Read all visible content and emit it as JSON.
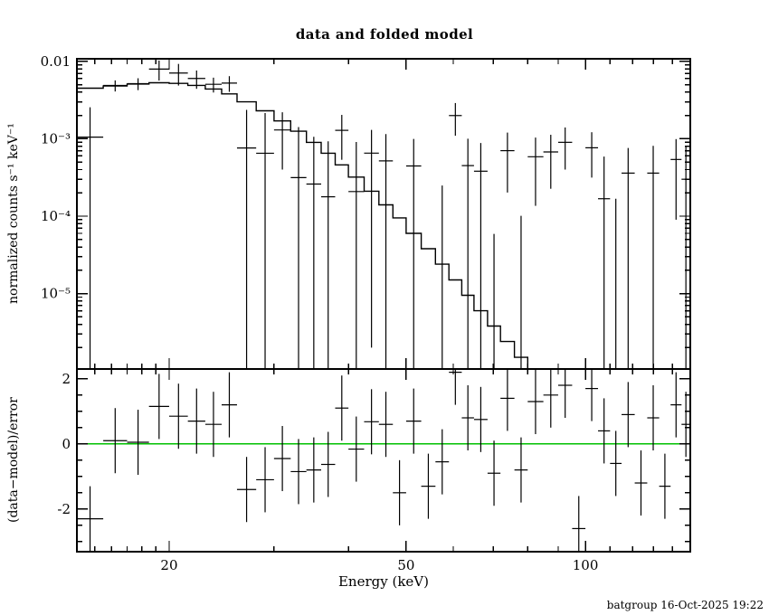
{
  "header": {
    "title": "data and folded model"
  },
  "footer": {
    "timestamp": "batgroup 16-Oct-2025 19:22"
  },
  "chart_data": {
    "type": "scatter",
    "subtype": "xspec-data-and-folded-model-with-residuals",
    "title": "data and folded model",
    "xlabel": "Energy (keV)",
    "x_scale": "log",
    "x_range": [
      14,
      150
    ],
    "x_major_ticks": [
      {
        "v": 20,
        "label": "20"
      },
      {
        "v": 50,
        "label": "50"
      },
      {
        "v": 100,
        "label": "100"
      }
    ],
    "x_minor_ticks": [
      15,
      16,
      17,
      18,
      19,
      30,
      40,
      60,
      70,
      80,
      90,
      110,
      120,
      130,
      140,
      150
    ],
    "colors": {
      "axes": "#000000",
      "data": "#000000",
      "model": "#000000",
      "zero_line": "#00c000",
      "background": "#ffffff"
    },
    "panels": {
      "top": {
        "ylabel": "normalized counts s⁻¹ keV⁻¹",
        "y_scale": "log",
        "y_range": [
          1.06e-06,
          0.0108
        ],
        "y_major_ticks": [
          {
            "v": 0.01,
            "label": "0.01"
          },
          {
            "v": 0.001,
            "label": "10⁻³"
          },
          {
            "v": 0.0001,
            "label": "10⁻⁴"
          },
          {
            "v": 1e-05,
            "label": "10⁻⁵"
          }
        ]
      },
      "bottom": {
        "ylabel": "(data−model)/error",
        "y_scale": "linear",
        "y_range": [
          -3.31,
          2.3
        ],
        "y_major_ticks": [
          {
            "v": 2,
            "label": "2"
          },
          {
            "v": 0,
            "label": "0"
          },
          {
            "v": -2,
            "label": "-2"
          }
        ],
        "y_minor_ticks": [
          -3,
          -2.5,
          -1.5,
          -1,
          -0.5,
          0.5,
          1,
          1.5
        ],
        "resid_err": 1
      }
    },
    "bin_columns": [
      "e_lo",
      "e_hi",
      "model",
      "data",
      "err",
      "resid"
    ],
    "bins": [
      [
        14,
        15.5,
        0.0045,
        0.00105,
        0.0015,
        -2.3
      ],
      [
        15.5,
        17,
        0.0048,
        0.00488,
        0.0008,
        0.1
      ],
      [
        17,
        18.5,
        0.0051,
        0.00515,
        0.0009,
        0.05
      ],
      [
        18.5,
        20,
        0.0053,
        0.00795,
        0.0023,
        1.15
      ],
      [
        20,
        21.5,
        0.0052,
        0.00707,
        0.0022,
        0.85
      ],
      [
        21.5,
        23,
        0.0049,
        0.00602,
        0.0016,
        0.7
      ],
      [
        23,
        24.5,
        0.0044,
        0.00506,
        0.0011,
        0.6
      ],
      [
        24.5,
        26,
        0.0038,
        0.00524,
        0.0012,
        1.2
      ],
      [
        26,
        28,
        0.003,
        0.00076,
        0.0016,
        -1.4
      ],
      [
        28,
        30,
        0.0023,
        0.00065,
        0.0015,
        -1.1
      ],
      [
        30,
        32,
        0.0017,
        0.0013,
        0.0009,
        -0.45
      ],
      [
        32,
        34,
        0.00125,
        0.000315,
        0.0011,
        -0.85
      ],
      [
        34,
        36,
        0.0009,
        0.00026,
        0.0008,
        -0.8
      ],
      [
        36,
        38,
        0.00065,
        0.000178,
        0.00075,
        -0.63
      ],
      [
        38,
        40,
        0.00046,
        0.001285,
        0.00075,
        1.1
      ],
      [
        40,
        42.5,
        0.00032,
        0.000208,
        0.0007,
        -0.16
      ],
      [
        42.5,
        45,
        0.00021,
        0.000652,
        0.00065,
        0.68
      ],
      [
        45,
        47.5,
        0.00014,
        0.000518,
        0.00063,
        0.6
      ],
      [
        47.5,
        50,
        9.5e-05,
        -0.000805,
        0.0006,
        -1.5
      ],
      [
        50,
        53,
        6e-05,
        0.000445,
        0.00055,
        0.7
      ],
      [
        53,
        56,
        3.8e-05,
        -0.000677,
        0.00055,
        -1.3
      ],
      [
        56,
        59,
        2.4e-05,
        -0.000251,
        0.0005,
        -0.55
      ],
      [
        59,
        62,
        1.5e-05,
        0.001995,
        0.0009,
        2.2
      ],
      [
        62,
        65,
        9.5e-06,
        0.00045,
        0.00055,
        0.8
      ],
      [
        65,
        68.5,
        6e-06,
        0.000381,
        0.0005,
        0.75
      ],
      [
        68.5,
        72,
        3.8e-06,
        -0.000491,
        0.00055,
        -0.9
      ],
      [
        72,
        76,
        2.4e-06,
        0.000702,
        0.0005,
        1.4
      ],
      [
        76,
        80,
        1.5e-06,
        -0.000399,
        0.0005,
        -0.8
      ],
      [
        80,
        85,
        1e-06,
        0.000586,
        0.00045,
        1.3
      ],
      [
        85,
        90,
        7e-07,
        0.000676,
        0.00045,
        1.5
      ],
      [
        90,
        95,
        5e-07,
        0.0009,
        0.0005,
        1.8
      ],
      [
        95,
        100,
        4e-07,
        -0.00117,
        0.00045,
        -2.6
      ],
      [
        100,
        105,
        3e-07,
        0.000765,
        0.00045,
        1.7
      ],
      [
        105,
        110,
        2.5e-07,
        0.000168,
        0.00042,
        0.4
      ],
      [
        110,
        115,
        2.2e-07,
        -0.000252,
        0.00042,
        -0.6
      ],
      [
        115,
        121,
        1.8e-07,
        0.00036,
        0.0004,
        0.9
      ],
      [
        121,
        127,
        1.5e-07,
        -0.000504,
        0.00042,
        -1.2
      ],
      [
        127,
        133,
        1.2e-07,
        0.00036,
        0.00045,
        0.8
      ],
      [
        133,
        139,
        1e-07,
        -0.000585,
        0.00045,
        -1.3
      ],
      [
        139,
        145,
        9e-08,
        0.00054,
        0.00045,
        1.2
      ],
      [
        145,
        150,
        8e-08,
        0.0003,
        0.0005,
        0.6
      ]
    ]
  }
}
